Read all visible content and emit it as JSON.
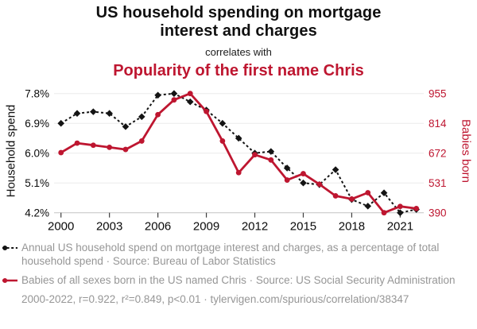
{
  "header": {
    "title_top": "US household spending on mortgage interest and charges",
    "connector": "correlates with",
    "title_bottom": "Popularity of the first name Chris"
  },
  "colors": {
    "accent_red": "#be1630",
    "series_black": "#141414"
  },
  "chart_data": {
    "type": "line",
    "x": [
      2000,
      2001,
      2002,
      2003,
      2004,
      2005,
      2006,
      2007,
      2008,
      2009,
      2010,
      2011,
      2012,
      2013,
      2014,
      2015,
      2016,
      2017,
      2018,
      2019,
      2020,
      2021,
      2022
    ],
    "x_tick_labels": [
      "2000",
      "2003",
      "2006",
      "2009",
      "2012",
      "2015",
      "2018",
      "2021"
    ],
    "left_axis": {
      "label": "Household spend",
      "tick_labels": [
        "7.8%",
        "6.9%",
        "6.0%",
        "5.1%",
        "4.2%"
      ],
      "tick_values": [
        7.8,
        6.9,
        6.0,
        5.1,
        4.2
      ],
      "range": [
        4.2,
        7.8
      ]
    },
    "right_axis": {
      "label": "Babies born",
      "tick_labels": [
        "955",
        "814",
        "672",
        "531",
        "390"
      ],
      "tick_values": [
        955,
        814,
        672,
        531,
        390
      ],
      "range": [
        390,
        955
      ]
    },
    "grid": true,
    "legend_position": "below",
    "series": [
      {
        "name": "Annual US household spend on mortgage interest and charges, as a percentage of total household spend",
        "short_name": "Household spend",
        "axis": "left",
        "style": "dashed",
        "marker": "diamond",
        "values": [
          6.9,
          7.2,
          7.25,
          7.2,
          6.8,
          7.1,
          7.75,
          7.8,
          7.55,
          7.3,
          6.9,
          6.45,
          6.0,
          6.05,
          5.55,
          5.1,
          5.05,
          5.5,
          4.6,
          4.4,
          4.8,
          4.2,
          4.3
        ]
      },
      {
        "name": "Babies of all sexes born in the US named Chris",
        "short_name": "Babies born",
        "axis": "right",
        "style": "solid",
        "marker": "circle",
        "values": [
          675,
          720,
          710,
          700,
          690,
          730,
          855,
          925,
          955,
          870,
          730,
          580,
          665,
          640,
          545,
          575,
          525,
          470,
          455,
          485,
          390,
          420,
          410
        ]
      }
    ]
  },
  "legend": {
    "item_household": "Annual US household spend on mortgage interest and charges, as a percentage of total household spend · Source: Bureau of Labor Statistics",
    "item_babies": "Babies of all sexes born in the US named Chris · Source: US Social Security Administration",
    "footnote": "2000-2022, r=0.922, r²=0.849, p<0.01 · tylervigen.com/spurious/correlation/38347"
  }
}
